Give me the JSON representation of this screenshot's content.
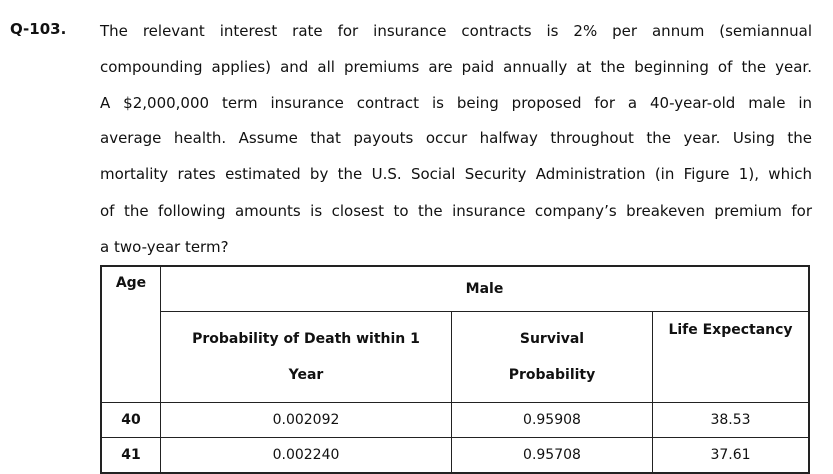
{
  "question": {
    "number": "Q-103.",
    "lines": [
      "The relevant interest rate for insurance contracts is 2% per annum (semiannual",
      "compounding applies) and all premiums are paid annually at the beginning of the year.",
      "A $2,000,000 term insurance contract is being proposed for a 40-year-old male in",
      "average health. Assume that payouts occur halfway throughout the year. Using the",
      "mortality rates estimated by the U.S. Social Security Administration (in Figure 1), which",
      "of the following amounts is closest to the insurance company’s breakeven premium for",
      "a two-year term?"
    ]
  },
  "table": {
    "age_header": "Age",
    "group_header": "Male",
    "columns": [
      {
        "line1": "Probability of Death within 1",
        "line2": "Year"
      },
      {
        "line1": "Survival",
        "line2": "Probability"
      },
      {
        "line1": "Life Expectancy",
        "line2": ""
      }
    ],
    "rows": [
      {
        "age": "40",
        "death_prob": "0.002092",
        "survival": "0.95908",
        "life_exp": "38.53"
      },
      {
        "age": "41",
        "death_prob": "0.002240",
        "survival": "0.95708",
        "life_exp": "37.61"
      }
    ]
  }
}
